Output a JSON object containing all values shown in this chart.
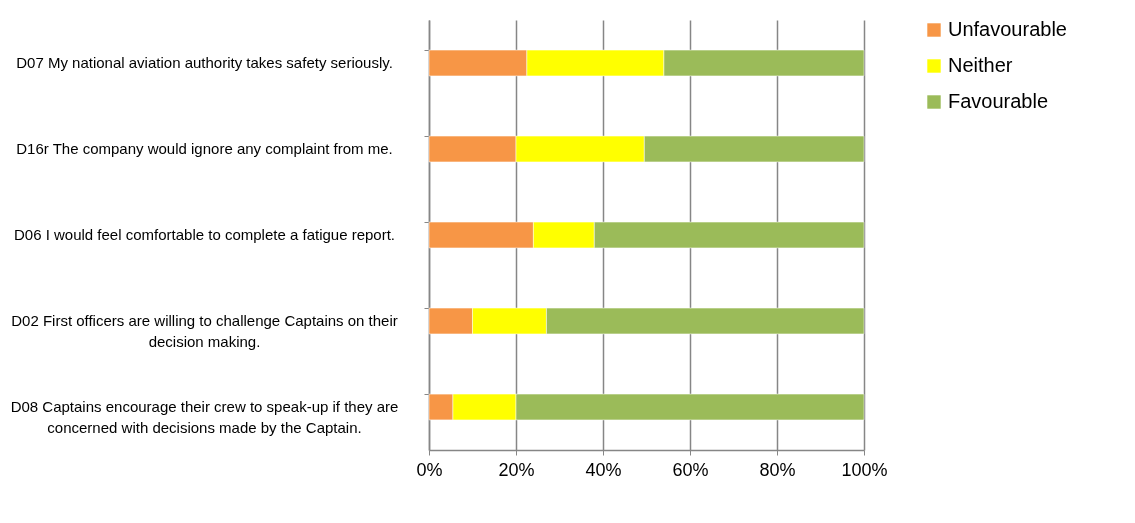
{
  "chart_data": {
    "type": "bar",
    "orientation": "horizontal",
    "stacked": true,
    "categories": [
      "D07  My national aviation authority takes safety seriously.",
      "D16r The company would ignore any complaint from me.",
      "D06 I would feel comfortable to complete a fatigue report.",
      "D02 First officers are willing to challenge Captains on their decision making.",
      "D08 Captains encourage their crew to speak-up if they are concerned with decisions made by the Captain."
    ],
    "series": [
      {
        "name": "Unfavourable",
        "color": "#f79646",
        "values": [
          22.5,
          20,
          24,
          10,
          5.5
        ]
      },
      {
        "name": "Neither",
        "color": "#ffff00",
        "values": [
          31.5,
          29.5,
          14,
          17,
          14.5
        ]
      },
      {
        "name": "Favourable",
        "color": "#9bbb59",
        "values": [
          46,
          50.5,
          62,
          73,
          80
        ]
      }
    ],
    "xlim": [
      0,
      100
    ],
    "xticks": [
      {
        "value": 0,
        "label": "0%"
      },
      {
        "value": 20,
        "label": "20%"
      },
      {
        "value": 40,
        "label": "40%"
      },
      {
        "value": 60,
        "label": "60%"
      },
      {
        "value": 80,
        "label": "80%"
      },
      {
        "value": 100,
        "label": "100%"
      }
    ],
    "grid": "x",
    "legend": "right"
  }
}
